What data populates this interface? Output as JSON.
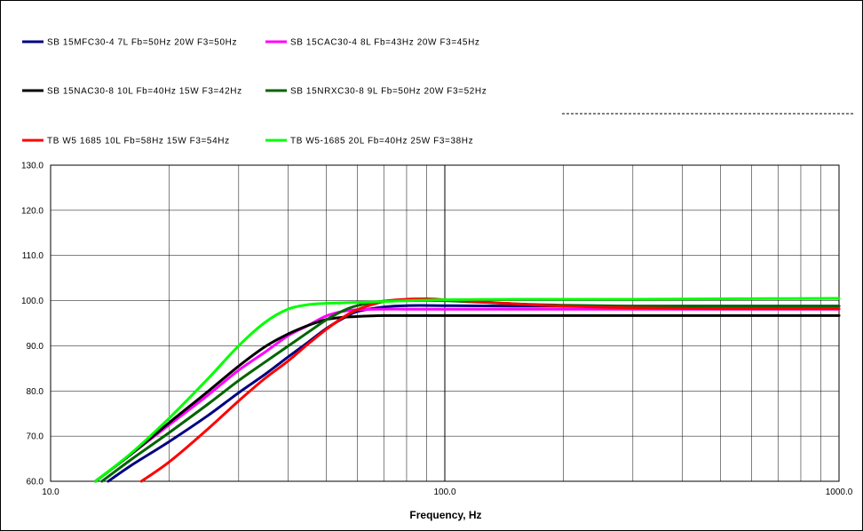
{
  "chart_data": {
    "type": "line",
    "title": "",
    "xlabel": "Frequency, Hz",
    "ylabel": "",
    "x_scale": "log",
    "xlim": [
      10,
      1000
    ],
    "ylim": [
      60,
      130
    ],
    "x_ticks": [
      10,
      100,
      1000
    ],
    "x_tick_labels": [
      "10.0",
      "100.0",
      "1000.0"
    ],
    "y_ticks": [
      60,
      70,
      80,
      90,
      100,
      110,
      120,
      130
    ],
    "y_tick_labels": [
      "60.0",
      "70.0",
      "80.0",
      "90.0",
      "100.0",
      "110.0",
      "120.0",
      "130.0"
    ],
    "grid": true,
    "legend_position": "top",
    "series": [
      {
        "name": "SB 15MFC30-4 7L Fb=50Hz 20W F3=50Hz",
        "color": "#000080",
        "x": [
          14,
          16,
          20,
          25,
          30,
          35,
          40,
          45,
          50,
          55,
          60,
          70,
          80,
          100,
          150,
          200,
          300,
          500,
          1000
        ],
        "y": [
          60,
          63.5,
          68.8,
          74.5,
          79.6,
          83.7,
          87.5,
          90.8,
          93.8,
          96,
          97.6,
          98.6,
          98.9,
          98.9,
          98.8,
          98.8,
          98.8,
          98.8,
          98.8
        ]
      },
      {
        "name": "SB 15CAC30-4 8L Fb=43Hz 20W F3=45Hz",
        "color": "#ff00ff",
        "x": [
          13,
          16,
          20,
          25,
          30,
          35,
          40,
          45,
          50,
          55,
          60,
          70,
          80,
          100,
          150,
          200,
          300,
          500,
          1000
        ],
        "y": [
          60,
          66,
          72.5,
          79,
          84.6,
          88.6,
          92.2,
          94.5,
          96.6,
          97.6,
          98,
          98.1,
          98.1,
          98.1,
          98.1,
          98.1,
          98.1,
          98.1,
          98.1
        ]
      },
      {
        "name": "SB 15NAC30-8 10L Fb=40Hz 15W F3=42Hz",
        "color": "#000000",
        "x": [
          13,
          16,
          20,
          25,
          30,
          35,
          40,
          45,
          50,
          55,
          60,
          70,
          80,
          100,
          150,
          200,
          300,
          500,
          1000
        ],
        "y": [
          60,
          66,
          73,
          79.8,
          85.5,
          89.8,
          92.6,
          94.5,
          95.8,
          96.3,
          96.5,
          96.7,
          96.7,
          96.7,
          96.7,
          96.7,
          96.7,
          96.7,
          96.7
        ]
      },
      {
        "name": "SB 15NRXC30-8 9L Fb=50Hz 20W F3=52Hz",
        "color": "#006400",
        "x": [
          13.5,
          16,
          20,
          25,
          30,
          35,
          40,
          45,
          50,
          55,
          60,
          70,
          80,
          100,
          150,
          200,
          300,
          500,
          1000
        ],
        "y": [
          60,
          64.8,
          70.8,
          77,
          82.3,
          86.4,
          89.9,
          93,
          95.7,
          97.7,
          98.9,
          99.9,
          100,
          100,
          99.3,
          99,
          98.8,
          98.8,
          98.8
        ]
      },
      {
        "name": "TB W5 1685 10L Fb=58Hz 15W F3=54Hz",
        "color": "#ff0000",
        "x": [
          17,
          20,
          25,
          30,
          35,
          40,
          45,
          50,
          55,
          60,
          70,
          80,
          90,
          100,
          120,
          150,
          200,
          300,
          500,
          1000
        ],
        "y": [
          60,
          64.3,
          71.5,
          77.8,
          82.8,
          86.6,
          90.4,
          93.6,
          96.2,
          98,
          99.8,
          100.3,
          100.4,
          100.2,
          99.8,
          99.3,
          98.8,
          98.4,
          98.2,
          98.2
        ]
      },
      {
        "name": "TB W5-1685 20L Fb=40Hz 25W F3=38Hz",
        "color": "#00ff00",
        "x": [
          13,
          16,
          20,
          25,
          30,
          35,
          40,
          45,
          50,
          55,
          60,
          70,
          80,
          100,
          150,
          200,
          300,
          500,
          1000
        ],
        "y": [
          60,
          66.2,
          74,
          82.6,
          90,
          95.2,
          98.1,
          99.1,
          99.4,
          99.5,
          99.6,
          99.8,
          100,
          100.2,
          100.3,
          100.3,
          100.3,
          100.4,
          100.5
        ]
      }
    ]
  }
}
